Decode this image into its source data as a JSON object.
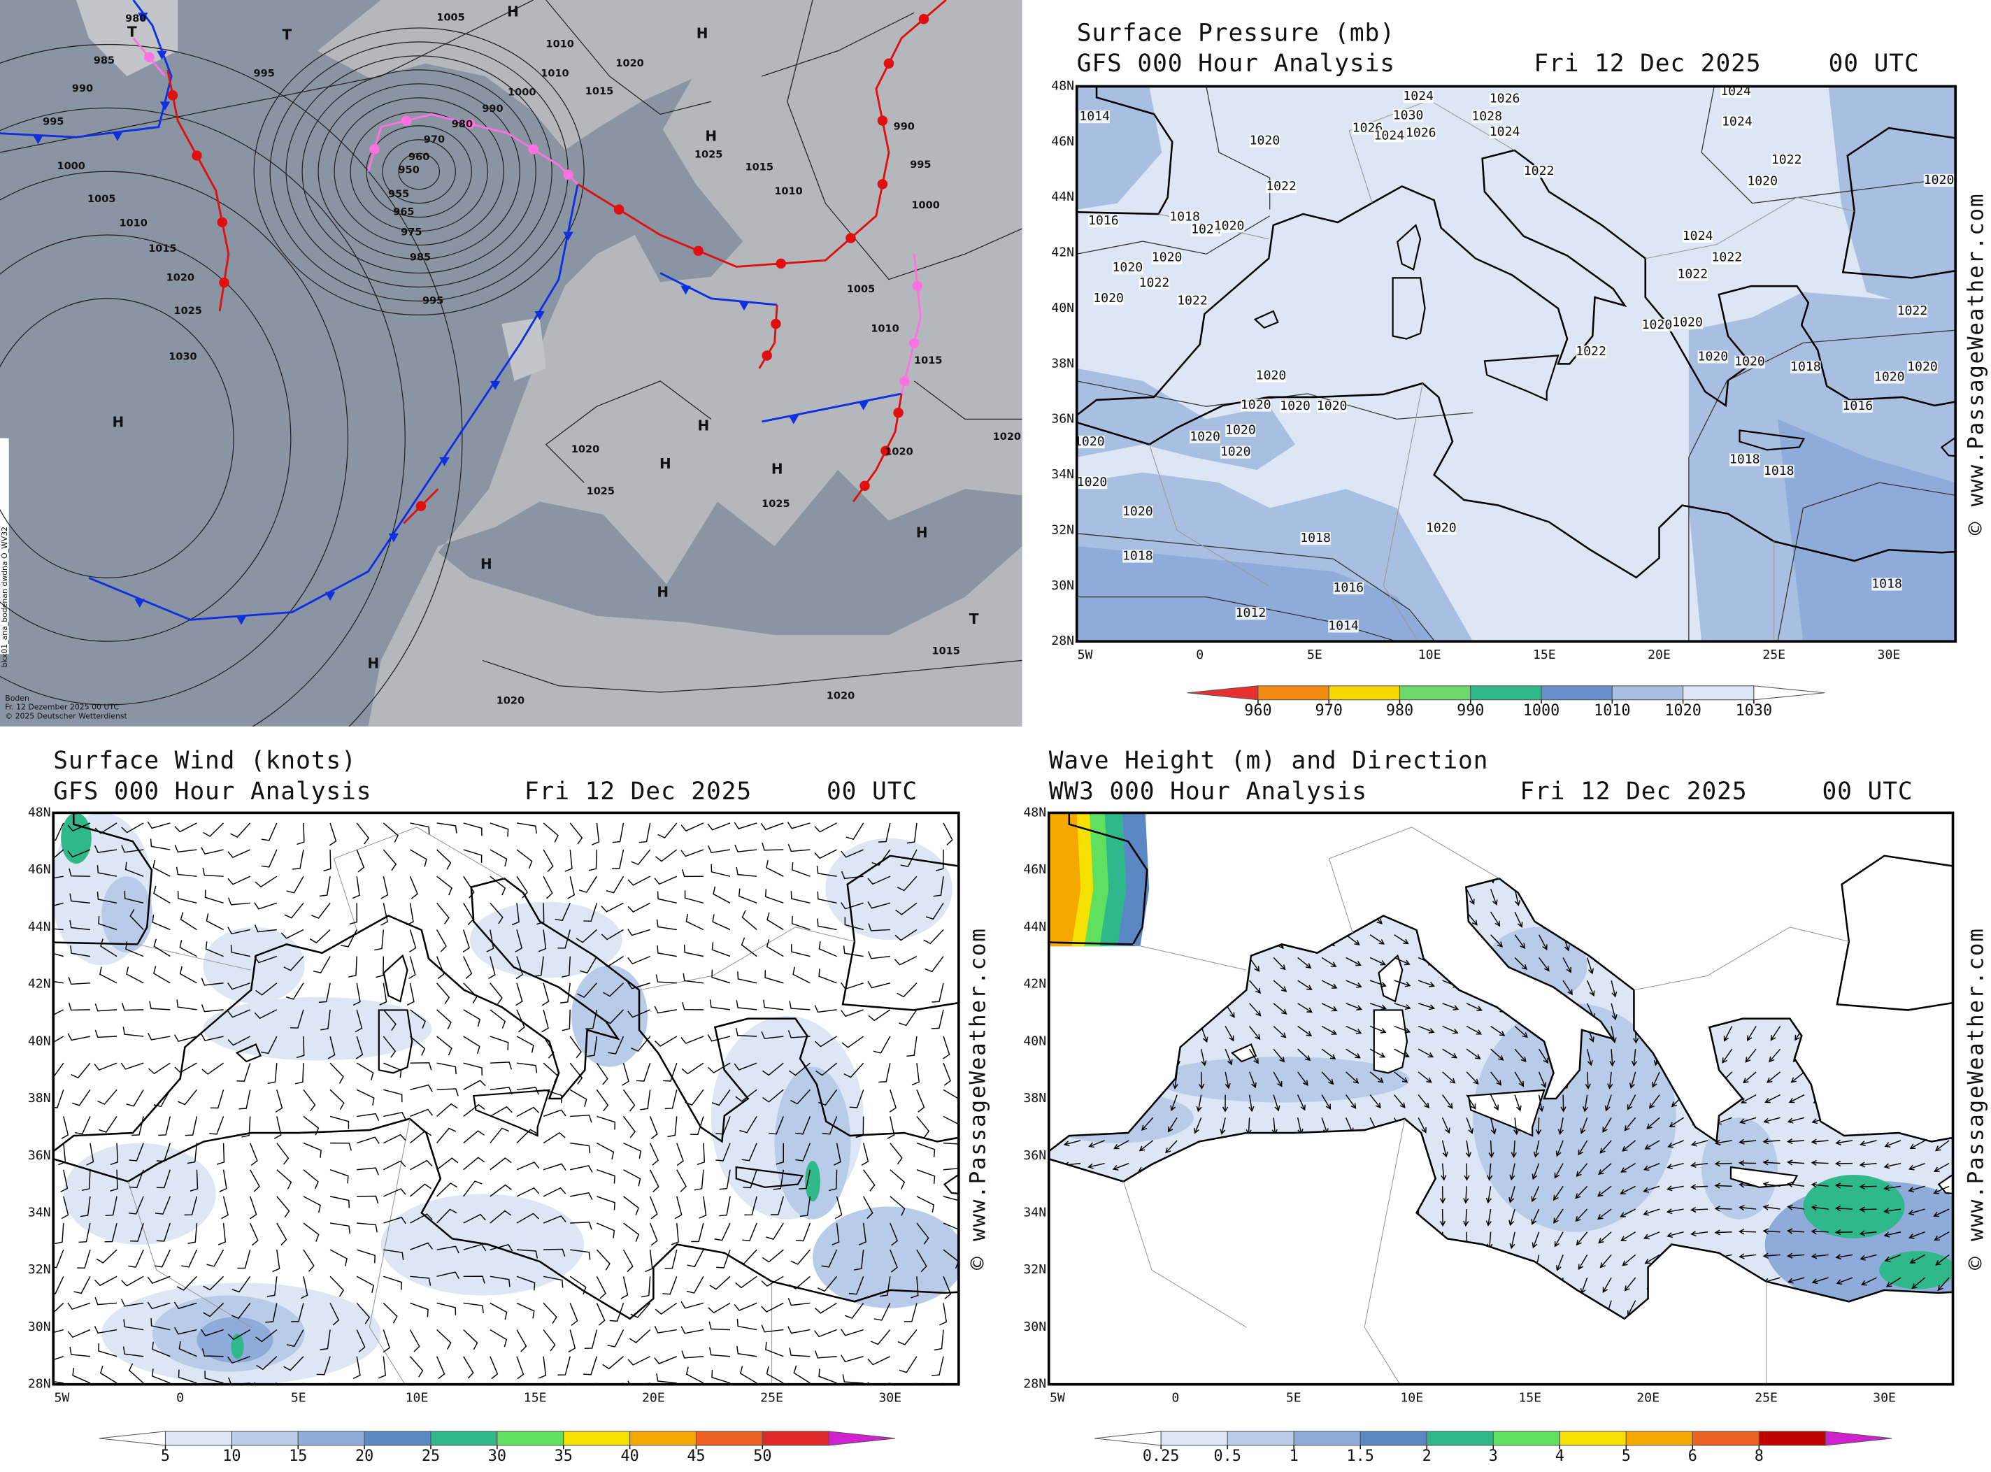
{
  "synoptic_chart": {
    "footer": [
      "Boden",
      "Fr. 12 Dezember 2025 00 UTC",
      "© 2025 Deutscher Wetterdienst"
    ],
    "side_label": "bkx01_ana_bodenan dwdna O_WV32",
    "isobar_labels": [
      "980",
      "985",
      "990",
      "995",
      "1000",
      "1005",
      "1010",
      "1015",
      "1020",
      "1025",
      "1030",
      "995",
      "1005",
      "1010",
      "1010",
      "1000",
      "1015",
      "1020",
      "990",
      "980",
      "970",
      "960",
      "950",
      "955",
      "965",
      "975",
      "985",
      "995",
      "1025",
      "1015",
      "1010",
      "1005",
      "1010",
      "1015",
      "1000",
      "995",
      "990",
      "1020",
      "1025",
      "1025",
      "1020",
      "1020",
      "1015",
      "1020",
      "1020"
    ],
    "pressure_centers": [
      "H",
      "T",
      "T",
      "H",
      "H",
      "H",
      "H",
      "H",
      "H",
      "H",
      "H",
      "H",
      "T",
      "H"
    ]
  },
  "pressure_map": {
    "title": "Surface Pressure (mb)",
    "subtitle": "GFS 000 Hour Analysis",
    "date": "Fri 12 Dec 2025",
    "time": "00 UTC",
    "lat_labels": [
      "48N",
      "46N",
      "44N",
      "42N",
      "40N",
      "38N",
      "36N",
      "34N",
      "32N",
      "30N",
      "28N"
    ],
    "lon_labels": [
      "5W",
      "0",
      "5E",
      "10E",
      "15E",
      "20E",
      "25E",
      "30E"
    ],
    "colorbar": {
      "labels": [
        "960",
        "970",
        "980",
        "990",
        "1000",
        "1010",
        "1020",
        "1030"
      ],
      "colors": [
        "#e83030",
        "#f08a10",
        "#f5d800",
        "#6ad86a",
        "#2fb88a",
        "#6a90cc",
        "#a8bfe2",
        "#dce6f4",
        "#ffffff"
      ]
    },
    "watermark": "© www.PassageWeather.com",
    "contour_labels": [
      "1014",
      "1020",
      "1022",
      "1024",
      "1026",
      "1024",
      "1026",
      "1030",
      "1028",
      "1026",
      "1024",
      "1024",
      "1024",
      "1022",
      "1020",
      "1020",
      "1022",
      "1016",
      "1018",
      "1024",
      "1020",
      "1020",
      "1020",
      "1022",
      "1022",
      "1020",
      "1024",
      "1022",
      "1022",
      "1022",
      "1022",
      "1020",
      "1020",
      "1020",
      "1020",
      "1018",
      "1020",
      "1020",
      "1016",
      "1018",
      "1018",
      "1020",
      "1020",
      "1020",
      "1020",
      "1020",
      "1020",
      "1020",
      "1020",
      "1020",
      "1020",
      "1018",
      "1020",
      "1018",
      "1016",
      "1012",
      "1014",
      "1018"
    ]
  },
  "wind_map": {
    "title": "Surface Wind (knots)",
    "subtitle": "GFS 000 Hour Analysis",
    "date": "Fri 12 Dec 2025",
    "time": "00 UTC",
    "lat_labels": [
      "48N",
      "46N",
      "44N",
      "42N",
      "40N",
      "38N",
      "36N",
      "34N",
      "32N",
      "30N",
      "28N"
    ],
    "lon_labels": [
      "5W",
      "0",
      "5E",
      "10E",
      "15E",
      "20E",
      "25E",
      "30E"
    ],
    "colorbar": {
      "labels": [
        "5",
        "10",
        "15",
        "20",
        "25",
        "30",
        "35",
        "40",
        "45",
        "50"
      ],
      "colors": [
        "#ffffff",
        "#dce6f4",
        "#b8cbe8",
        "#8eabd9",
        "#5b87c5",
        "#2fb88a",
        "#5fe05f",
        "#f5e000",
        "#f5a800",
        "#f06020",
        "#e02828",
        "#d020d0"
      ]
    },
    "watermark": "© www.PassageWeather.com"
  },
  "wave_map": {
    "title": "Wave Height (m) and Direction",
    "subtitle": "WW3 000 Hour Analysis",
    "date": "Fri 12 Dec 2025",
    "time": "00 UTC",
    "lat_labels": [
      "48N",
      "46N",
      "44N",
      "42N",
      "40N",
      "38N",
      "36N",
      "34N",
      "32N",
      "30N",
      "28N"
    ],
    "lon_labels": [
      "5W",
      "0",
      "5E",
      "10E",
      "15E",
      "20E",
      "25E",
      "30E"
    ],
    "colorbar": {
      "labels": [
        "0.25",
        "0.5",
        "1",
        "1.5",
        "2",
        "3",
        "4",
        "5",
        "6",
        "8"
      ],
      "colors": [
        "#ffffff",
        "#dce6f4",
        "#b8cbe8",
        "#8eabd9",
        "#5b87c5",
        "#2fb88a",
        "#5fe05f",
        "#f5e000",
        "#f5a800",
        "#f06020",
        "#c00000",
        "#d020d0"
      ]
    },
    "watermark": "© www.PassageWeather.com"
  }
}
